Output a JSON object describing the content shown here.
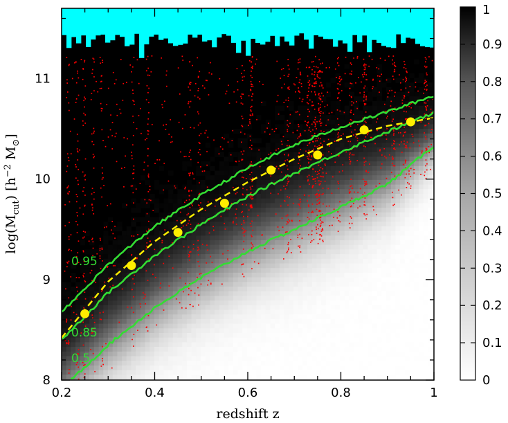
{
  "chart_data": {
    "type": "heatmap",
    "xlabel": "redshift z",
    "ylabel": {
      "main": "log(M",
      "sub": "cut",
      "mid": ")  [h",
      "sup": "−2",
      "unit": " M",
      "unit_sub": "⊙",
      "end": "]"
    },
    "xlim": [
      0.2,
      1.0
    ],
    "ylim": [
      8.0,
      11.7
    ],
    "x_ticks": [
      "0.2",
      "0.4",
      "0.6",
      "0.8",
      "1"
    ],
    "x_tick_values": [
      0.2,
      0.4,
      0.6,
      0.8,
      1.0
    ],
    "y_ticks": [
      "8",
      "9",
      "10",
      "11"
    ],
    "y_tick_values": [
      8,
      9,
      10,
      11
    ],
    "colorbar": {
      "range": [
        0,
        1
      ],
      "ticks": [
        "0",
        "0.1",
        "0.2",
        "0.3",
        "0.4",
        "0.5",
        "0.6",
        "0.7",
        "0.8",
        "0.9",
        "1"
      ],
      "tick_values": [
        0,
        0.1,
        0.2,
        0.3,
        0.4,
        0.5,
        0.6,
        0.7,
        0.8,
        0.9,
        1.0
      ],
      "colormap": "white-to-black grayscale"
    },
    "colors": {
      "saturated_region": "#00ffff",
      "contours": "#33dd33",
      "points": "#ff0000",
      "markers": "#ffee00",
      "fit": "#ffee00"
    },
    "contours": [
      {
        "label": "0.95",
        "x": [
          0.2,
          0.3,
          0.4,
          0.5,
          0.6,
          0.7,
          0.8,
          0.9,
          1.0
        ],
        "y": [
          8.67,
          9.15,
          9.53,
          9.84,
          10.11,
          10.34,
          10.52,
          10.67,
          10.83
        ]
      },
      {
        "label": "0.85",
        "x": [
          0.2,
          0.3,
          0.4,
          0.5,
          0.6,
          0.7,
          0.8,
          0.9,
          1.0
        ],
        "y": [
          8.4,
          8.87,
          9.24,
          9.55,
          9.83,
          10.06,
          10.27,
          10.47,
          10.66
        ]
      },
      {
        "label": "0.5",
        "x": [
          0.22,
          0.3,
          0.4,
          0.5,
          0.6,
          0.7,
          0.8,
          0.9,
          1.0
        ],
        "y": [
          8.0,
          8.35,
          8.72,
          9.02,
          9.28,
          9.5,
          9.72,
          9.95,
          10.33
        ]
      }
    ],
    "markers": {
      "x": [
        0.25,
        0.35,
        0.45,
        0.55,
        0.65,
        0.75,
        0.85,
        0.95
      ],
      "y": [
        8.66,
        9.14,
        9.47,
        9.76,
        10.09,
        10.24,
        10.49,
        10.57
      ]
    },
    "fit_curve": {
      "style": "dashed",
      "x": [
        0.2,
        0.3,
        0.4,
        0.5,
        0.6,
        0.7,
        0.8,
        0.9,
        1.0
      ],
      "y": [
        8.42,
        8.98,
        9.38,
        9.7,
        9.97,
        10.2,
        10.4,
        10.53,
        10.61
      ]
    },
    "grid": false,
    "legend": "none"
  }
}
